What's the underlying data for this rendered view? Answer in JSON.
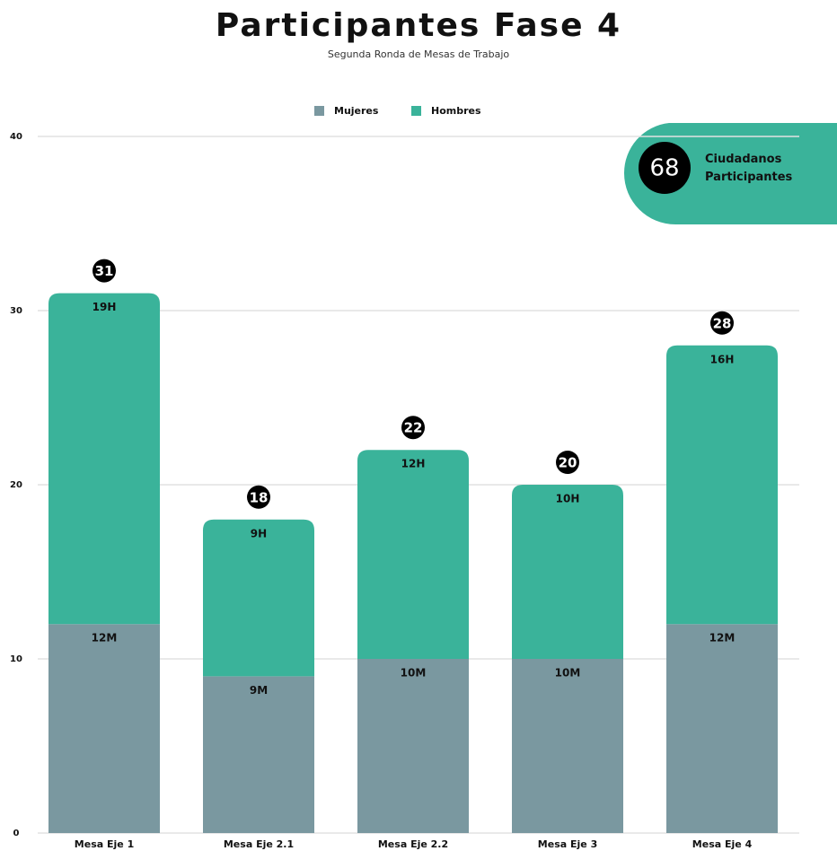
{
  "chart_data": {
    "type": "stacked_bar",
    "title": "Participantes Fase 4",
    "subtitle": "Segunda Ronda de Mesas de Trabajo",
    "categories": [
      "Mesa Eje 1",
      "Mesa Eje 2.1",
      "Mesa Eje 2.2",
      "Mesa Eje 3",
      "Mesa Eje 4"
    ],
    "series": [
      {
        "name": "Mujeres",
        "color": "#7a98a0",
        "values": [
          12,
          9,
          10,
          10,
          12
        ],
        "value_labels": [
          "12M",
          "9M",
          "10M",
          "10M",
          "12M"
        ]
      },
      {
        "name": "Hombres",
        "color": "#3ab39a",
        "values": [
          19,
          9,
          12,
          10,
          16
        ],
        "value_labels": [
          "19H",
          "9H",
          "12H",
          "10H",
          "16H"
        ]
      }
    ],
    "totals": [
      31,
      18,
      22,
      20,
      28
    ],
    "ylim": [
      0,
      40
    ],
    "yticks": [
      0,
      10,
      20,
      30,
      40
    ],
    "grid": true,
    "legend": "top",
    "badge": {
      "value": 68,
      "label": "Ciudadanos Participantes"
    }
  }
}
